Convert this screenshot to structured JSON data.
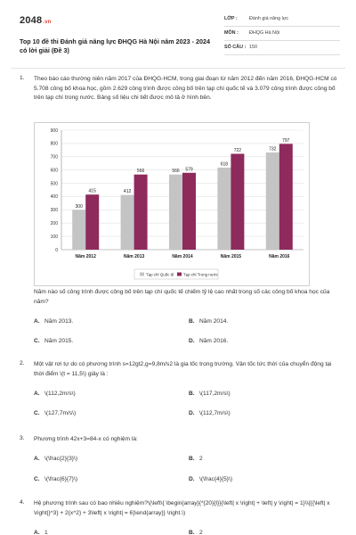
{
  "header": {
    "logo": "2048",
    "logo_tld": ".vn",
    "title": "Top 10 đề thi Đánh giá năng lực ĐHQG Hà Nội năm 2023 - 2024 có lời giải (Đề 3)",
    "meta": [
      {
        "key": "LỚP :",
        "value": "Đánh giá năng lực"
      },
      {
        "key": "MÔN :",
        "value": "ĐHQG Hà Nội"
      },
      {
        "key": "SỐ CÂU :",
        "value": "150"
      }
    ]
  },
  "questions": [
    {
      "number": "1.",
      "text": "Theo báo cáo thường niên năm 2017 của ĐHQG-HCM, trong giai đoạn từ năm 2012 đến năm 2016, ĐHQG-HCM có 5.708 công bố khoa học, gồm 2.629 công trình được công bố trên tạp chí quốc tế và 3.079 công trình được công bố trên tạp chí trong nước. Bảng số liệu chi tiết được mô tả ở hình bên.",
      "question": "Năm nào số công trình được công bố trên tạp chí quốc tế chiếm tỷ lệ cao nhất trong số các công bố khoa học của năm?",
      "options": [
        {
          "letter": "A.",
          "text": "Năm 2013."
        },
        {
          "letter": "B.",
          "text": "Năm 2014."
        },
        {
          "letter": "C.",
          "text": "Năm 2015."
        },
        {
          "letter": "D.",
          "text": "Năm 2016."
        }
      ]
    },
    {
      "number": "2.",
      "text": "Một vật rơi tự do có phương trình s=12gt2,g=9,8m/s2 là gia tốc trọng trường. Vận tốc tức thời của chuyển động tại thời điểm \\(t = 11,5\\) giây là :",
      "options": [
        {
          "letter": "A.",
          "text": "\\(112,2m/s\\)"
        },
        {
          "letter": "B.",
          "text": "\\(117,2m/s\\)"
        },
        {
          "letter": "C.",
          "text": "\\(127,7m/s\\)"
        },
        {
          "letter": "D.",
          "text": "\\(112,7m/s\\)"
        }
      ]
    },
    {
      "number": "3.",
      "text": "Phương trình 42x+3=84-x có nghiệm là:",
      "options": [
        {
          "letter": "A.",
          "text": "\\(\\frac{2}{3}\\)"
        },
        {
          "letter": "B.",
          "text": "2"
        },
        {
          "letter": "C.",
          "text": "\\(\\frac{6}{7}\\)"
        },
        {
          "letter": "D.",
          "text": "\\(\\frac{4}{5}\\)"
        }
      ]
    },
    {
      "number": "4.",
      "text": "Hệ phương trình sau có bao nhiêu nghiệm?\\(\\left\\{ \\begin{array}{*{20}{l}}{\\left| x \\right| + \\left| y \\right| = 1}\\\\{{{\\left| x \\right|}^3} + 2{x^2} + 3\\left| x \\right| = 6}\\end{array}} \\right.\\)",
      "options": [
        {
          "letter": "A.",
          "text": "1"
        },
        {
          "letter": "B.",
          "text": "2"
        }
      ]
    }
  ],
  "chart_data": {
    "type": "bar",
    "categories": [
      "Năm 2012",
      "Năm 2013",
      "Năm 2014",
      "Năm 2015",
      "Năm 2016"
    ],
    "series": [
      {
        "name": "Tạp chí Quốc tế",
        "values": [
          300,
          412,
          566,
          618,
          732
        ],
        "color": "#c4c4c4"
      },
      {
        "name": "Tạp chí Trong nước",
        "values": [
          415,
          566,
          579,
          722,
          797
        ],
        "color": "#8e2a5c"
      }
    ],
    "yticks": [
      "0",
      "100",
      "200",
      "300",
      "400",
      "500",
      "600",
      "700",
      "800",
      "900"
    ],
    "ylim": [
      0,
      900
    ],
    "grid": true,
    "legend": "bottom"
  }
}
